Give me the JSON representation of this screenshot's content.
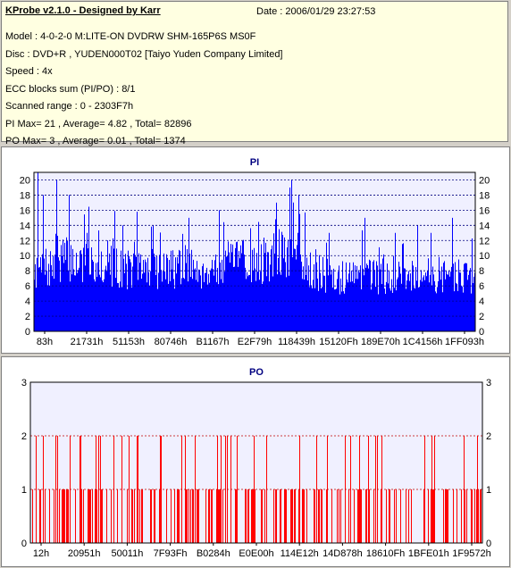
{
  "header": {
    "title": "KProbe v2.1.0 - Designed by Karr",
    "date": "Date : 2006/01/29 23:27:53"
  },
  "info_lines": [
    "Model : 4-0-2-0 M:LITE-ON DVDRW SHM-165P6S MS0F",
    "Disc : DVD+R , YUDEN000T02 [Taiyo Yuden Company Limited]",
    "Speed : 4x",
    "ECC blocks sum (PI/PO) : 8/1",
    "Scanned range : 0 - 2303F7h",
    "PI Max= 21 , Average= 4.82 , Total= 82896",
    "PO Max= 3 , Average= 0.01 , Total= 1374"
  ],
  "colors": {
    "pi_bars": "#0000ff",
    "po_bars": "#ff0000",
    "pi_grid": "#000080",
    "po_grid": "#c00000",
    "plot_bg": "#f0f0ff"
  },
  "chart_data": [
    {
      "type": "bar",
      "title": "PI",
      "ylim": [
        0,
        21
      ],
      "yticks": [
        0,
        2,
        4,
        6,
        8,
        10,
        12,
        14,
        16,
        18,
        20
      ],
      "xticks": [
        "83h",
        "21731h",
        "51153h",
        "80746h",
        "B1167h",
        "E2F79h",
        "118439h",
        "15120Fh",
        "189E70h",
        "1C4156h",
        "1FF093h"
      ],
      "x_range": [
        131,
        2294007
      ],
      "grid": "horizontal",
      "legend": "none",
      "profile": [
        [
          0,
          10
        ],
        [
          0.04,
          10
        ],
        [
          0.05,
          12
        ],
        [
          0.1,
          11
        ],
        [
          0.15,
          11
        ],
        [
          0.2,
          10
        ],
        [
          0.3,
          10
        ],
        [
          0.4,
          10
        ],
        [
          0.45,
          11
        ],
        [
          0.5,
          11
        ],
        [
          0.55,
          12
        ],
        [
          0.6,
          12
        ],
        [
          0.63,
          10
        ],
        [
          0.65,
          9
        ],
        [
          0.7,
          8.5
        ],
        [
          0.8,
          9
        ],
        [
          0.9,
          9
        ],
        [
          1,
          9
        ]
      ],
      "peaks": [
        [
          0.009,
          21
        ],
        [
          0.02,
          18
        ],
        [
          0.05,
          20
        ],
        [
          0.08,
          18
        ],
        [
          0.12,
          13
        ],
        [
          0.2,
          14
        ],
        [
          0.27,
          14
        ],
        [
          0.35,
          15
        ],
        [
          0.42,
          16
        ],
        [
          0.5,
          15
        ],
        [
          0.55,
          17
        ],
        [
          0.58,
          19
        ],
        [
          0.585,
          20
        ],
        [
          0.6,
          18
        ],
        [
          0.67,
          13
        ],
        [
          0.75,
          15
        ],
        [
          0.82,
          13
        ],
        [
          0.87,
          14
        ],
        [
          0.9,
          13
        ],
        [
          0.95,
          15
        ]
      ]
    },
    {
      "type": "bar",
      "title": "PO",
      "ylim": [
        0,
        3
      ],
      "yticks": [
        0,
        1,
        2,
        3
      ],
      "xticks": [
        "12h",
        "20951h",
        "50011h",
        "7F93Fh",
        "B0284h",
        "E0E00h",
        "114E12h",
        "14D878h",
        "18610Fh",
        "1BFE01h",
        "1F9572h"
      ],
      "x_range": [
        18,
        2294007
      ],
      "grid": "horizontal",
      "legend": "none",
      "max_value": 3,
      "max_at": 0.1
    }
  ]
}
